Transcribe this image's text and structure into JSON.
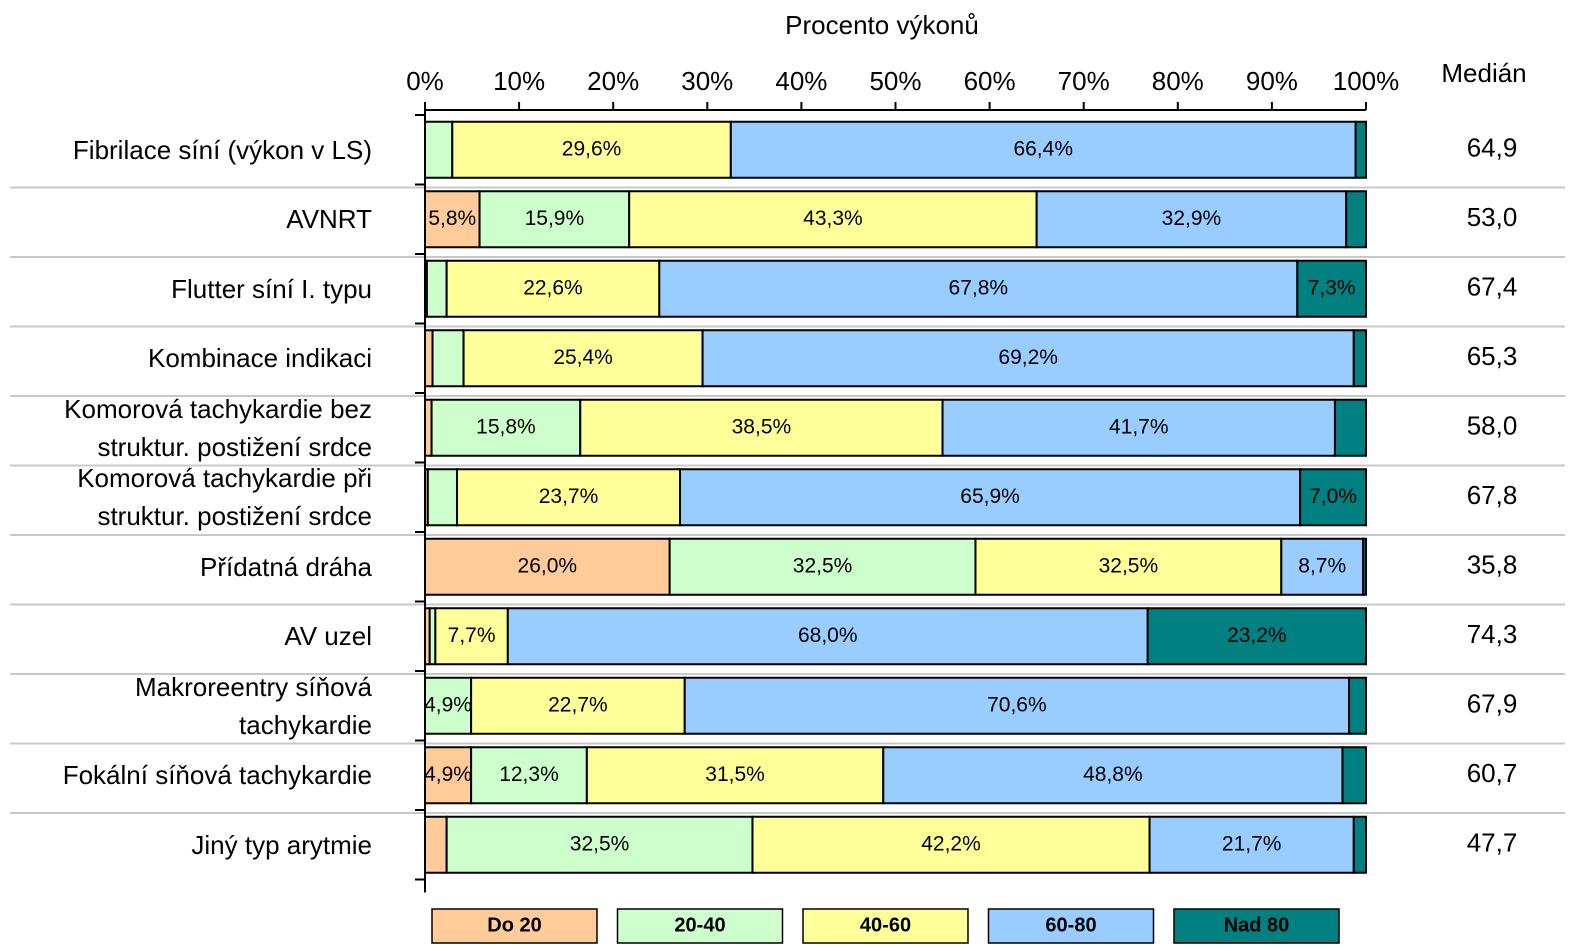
{
  "chart_data": {
    "type": "stacked_bar_horizontal",
    "x_label": "Procento výkonů",
    "categories": [
      "Fibrilace síní (výkon v LS)",
      "AVNRT",
      "Flutter síní I. typu",
      "Kombinace indikaci",
      "Komorová tachykardie bez\nstruktur. postižení srdce",
      "Komorová tachykardie při\nstruktur. postižení srdce",
      "Přídatná dráha",
      "AV uzel",
      "Makroreentry síňová\ntachykardie",
      "Fokální síňová tachykardie",
      "Jiný typ arytmie"
    ],
    "xlim": [
      0,
      100
    ],
    "xticks": [
      {
        "value": 0,
        "label": "0%"
      },
      {
        "value": 10,
        "label": "10%"
      },
      {
        "value": 20,
        "label": "20%"
      },
      {
        "value": 30,
        "label": "30%"
      },
      {
        "value": 40,
        "label": "40%"
      },
      {
        "value": 50,
        "label": "50%"
      },
      {
        "value": 60,
        "label": "60%"
      },
      {
        "value": 70,
        "label": "70%"
      },
      {
        "value": 80,
        "label": "80%"
      },
      {
        "value": 90,
        "label": "90%"
      },
      {
        "value": 100,
        "label": "100%"
      }
    ],
    "series": [
      {
        "name": "Do 20",
        "color": "#ffcc99",
        "values": [
          0,
          5.8,
          0.2,
          0.8,
          0.7,
          0.3,
          26.0,
          0.5,
          0,
          4.9,
          2.3
        ],
        "value_labels": [
          null,
          "5,8%",
          null,
          null,
          null,
          null,
          "26,0%",
          null,
          null,
          "4,9%",
          null
        ]
      },
      {
        "name": "20-40",
        "color": "#ccffcc",
        "values": [
          2.9,
          15.9,
          2.1,
          3.3,
          15.8,
          3.1,
          32.5,
          0.6,
          4.9,
          12.3,
          32.5
        ],
        "value_labels": [
          null,
          "15,9%",
          null,
          null,
          "15,8%",
          null,
          "32,5%",
          null,
          "4,9%",
          "12,3%",
          "32,5%"
        ]
      },
      {
        "name": "40-60",
        "color": "#ffff99",
        "values": [
          29.6,
          43.3,
          22.6,
          25.4,
          38.5,
          23.7,
          32.5,
          7.7,
          22.7,
          31.5,
          42.2
        ],
        "value_labels": [
          "29,6%",
          "43,3%",
          "22,6%",
          "25,4%",
          "38,5%",
          "23,7%",
          "32,5%",
          "7,7%",
          "22,7%",
          "31,5%",
          "42,2%"
        ]
      },
      {
        "name": "60-80",
        "color": "#99ccff",
        "values": [
          66.4,
          32.9,
          67.8,
          69.2,
          41.7,
          65.9,
          8.7,
          68.0,
          70.6,
          48.8,
          21.7
        ],
        "value_labels": [
          "66,4%",
          "32,9%",
          "67,8%",
          "69,2%",
          "41,7%",
          "65,9%",
          "8,7%",
          "68,0%",
          "70,6%",
          "48,8%",
          "21,7%"
        ]
      },
      {
        "name": "Nad 80",
        "color": "#008080",
        "values": [
          1.1,
          2.1,
          7.3,
          1.3,
          3.3,
          7.0,
          0.3,
          23.2,
          1.8,
          2.5,
          1.3
        ],
        "value_labels": [
          null,
          null,
          "7,3%",
          null,
          null,
          "7,0%",
          null,
          "23,2%",
          null,
          null,
          null
        ]
      }
    ],
    "median_header": "Medián",
    "medians": [
      "64,9",
      "53,0",
      "67,4",
      "65,3",
      "58,0",
      "67,8",
      "35,8",
      "74,3",
      "67,9",
      "60,7",
      "47,7"
    ]
  }
}
